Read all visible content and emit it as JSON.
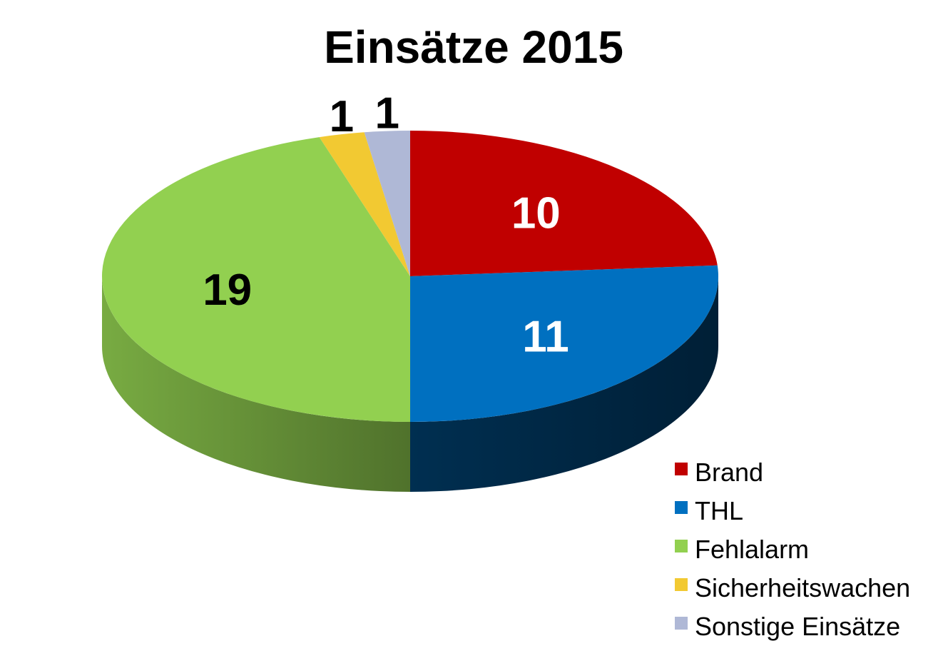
{
  "chart_data": {
    "type": "pie",
    "title": "Einsätze 2015",
    "categories": [
      "Brand",
      "THL",
      "Fehlalarm",
      "Sicherheitswachen",
      "Sonstige Einsätze"
    ],
    "values": [
      10,
      11,
      19,
      1,
      1
    ],
    "colors": [
      "#C00000",
      "#0070C0",
      "#92D050",
      "#F2C932",
      "#AFB8D6"
    ],
    "label_colors": [
      "#FFFFFF",
      "#FFFFFF",
      "#000000",
      "#000000",
      "#000000"
    ],
    "style": "3d",
    "legend": {
      "position": "bottom-right"
    }
  }
}
